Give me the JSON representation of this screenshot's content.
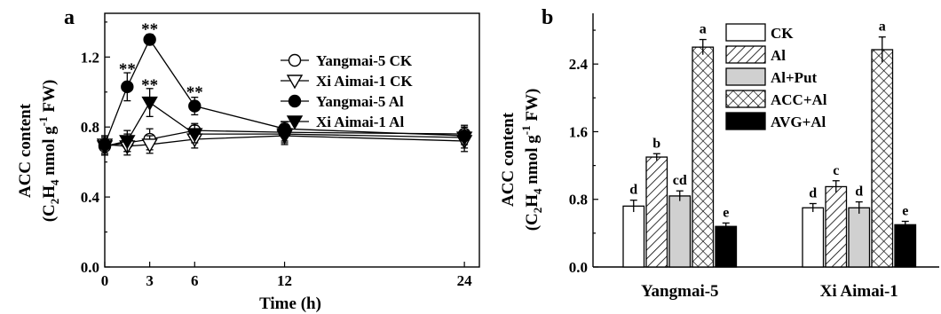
{
  "chart_data": [
    {
      "panel_label": "a",
      "type": "line",
      "xlabel": "Time (h)",
      "ylabel": "ACC content",
      "ylabel_unit": {
        "open": "(C",
        "sub1": "2",
        "mid": "H",
        "sub2": "4",
        "post": " nmol g",
        "sup": "-1",
        "end": " FW)"
      },
      "xlim": [
        0,
        25
      ],
      "ylim": [
        0.0,
        1.45
      ],
      "xticks": [
        0,
        3,
        6,
        12,
        24
      ],
      "yticks": [
        0.0,
        0.4,
        0.8,
        1.2
      ],
      "ytick_labels": [
        "0.0",
        "0.4",
        "0.8",
        "1.2"
      ],
      "series": [
        {
          "name": "Yangmai-5 CK",
          "marker": "circle-open",
          "x": [
            0,
            1.5,
            3,
            6,
            12,
            24
          ],
          "y": [
            0.69,
            0.71,
            0.73,
            0.78,
            0.77,
            0.76
          ],
          "err": [
            0.05,
            0.05,
            0.06,
            0.04,
            0.05,
            0.05
          ]
        },
        {
          "name": "Xi Aimai-1 CK",
          "marker": "triangle-down-open",
          "x": [
            0,
            1.5,
            3,
            6,
            12,
            24
          ],
          "y": [
            0.7,
            0.69,
            0.7,
            0.73,
            0.75,
            0.72
          ],
          "err": [
            0.05,
            0.05,
            0.05,
            0.05,
            0.05,
            0.06
          ]
        },
        {
          "name": "Yangmai-5  Al",
          "marker": "circle-filled",
          "x": [
            0,
            1.5,
            3,
            6,
            12,
            24
          ],
          "y": [
            0.7,
            1.03,
            1.3,
            0.92,
            0.79,
            0.75
          ],
          "err": [
            0.05,
            0.08,
            0.03,
            0.05,
            0.04,
            0.05
          ]
        },
        {
          "name": "Xi Aimai-1  Al",
          "marker": "triangle-down-filled",
          "x": [
            0,
            1.5,
            3,
            6,
            12,
            24
          ],
          "y": [
            0.69,
            0.72,
            0.94,
            0.76,
            0.76,
            0.74
          ],
          "err": [
            0.05,
            0.06,
            0.08,
            0.05,
            0.05,
            0.06
          ]
        }
      ],
      "annotations": [
        {
          "x": 1.5,
          "y": 1.14,
          "text": "**"
        },
        {
          "x": 3,
          "y": 1.37,
          "text": "**"
        },
        {
          "x": 3,
          "y": 1.05,
          "text": "**"
        },
        {
          "x": 6,
          "y": 1.01,
          "text": "**"
        }
      ],
      "legend_position": "top-right",
      "grid": false
    },
    {
      "panel_label": "b",
      "type": "bar",
      "ylabel": "ACC content",
      "ylabel_unit": {
        "open": "(C",
        "sub1": "2",
        "mid": "H",
        "sub2": "4",
        "post": " nmol g",
        "sup": "-1",
        "end": " FW)"
      },
      "categories": [
        "Yangmai-5",
        "Xi Aimai-1"
      ],
      "ylim": [
        0.0,
        3.0
      ],
      "yticks": [
        0.0,
        0.8,
        1.6,
        2.4
      ],
      "ytick_labels": [
        "0.0",
        "0.8",
        "1.6",
        "2.4"
      ],
      "series": [
        {
          "name": "CK",
          "pattern": "white",
          "values": [
            0.72,
            0.7
          ],
          "err": [
            0.07,
            0.05
          ],
          "letters": [
            "d",
            "d"
          ]
        },
        {
          "name": "Al",
          "pattern": "diagonal-hatch",
          "values": [
            1.3,
            0.95
          ],
          "err": [
            0.04,
            0.07
          ],
          "letters": [
            "b",
            "c"
          ]
        },
        {
          "name": "Al+Put",
          "pattern": "light-gray",
          "values": [
            0.84,
            0.7
          ],
          "err": [
            0.06,
            0.07
          ],
          "letters": [
            "cd",
            "d"
          ]
        },
        {
          "name": "ACC+Al",
          "pattern": "cross-hatch",
          "values": [
            2.6,
            2.57
          ],
          "err": [
            0.09,
            0.15
          ],
          "letters": [
            "a",
            "a"
          ]
        },
        {
          "name": "AVG+Al",
          "pattern": "black",
          "values": [
            0.48,
            0.5
          ],
          "err": [
            0.04,
            0.04
          ],
          "letters": [
            "e",
            "e"
          ]
        }
      ],
      "legend_position": "top-center",
      "grid": false
    }
  ]
}
